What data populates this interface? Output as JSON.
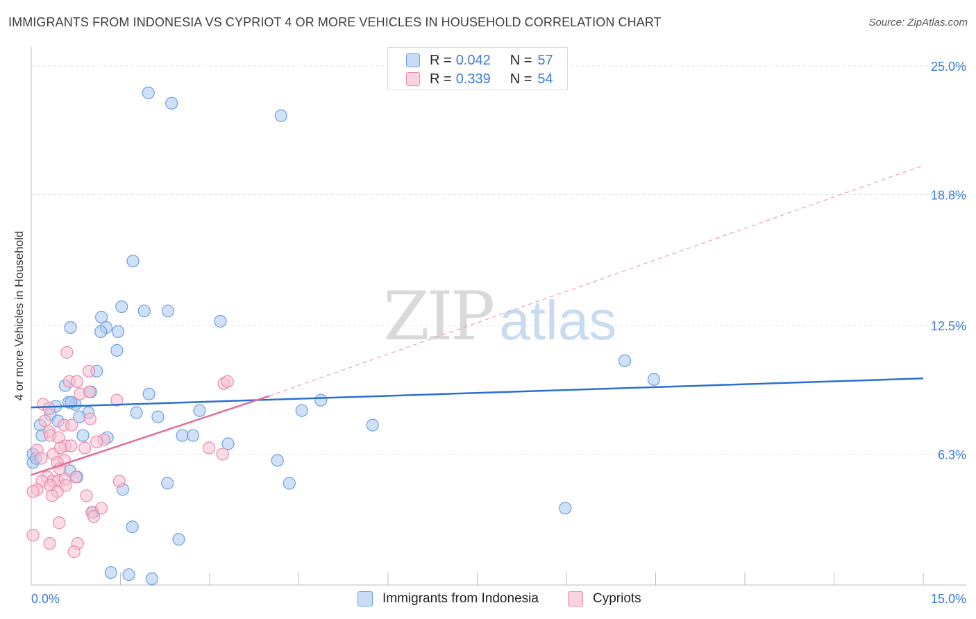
{
  "title": "IMMIGRANTS FROM INDONESIA VS CYPRIOT 4 OR MORE VEHICLES IN HOUSEHOLD CORRELATION CHART",
  "source": "Source: ZipAtlas.com",
  "watermark": {
    "zip": "ZIP",
    "atlas": "atlas"
  },
  "legend": {
    "r_label": "R =",
    "n_label": "N =",
    "rows": [
      {
        "r": "0.042",
        "n": "57",
        "color": "#aac8f0",
        "border": "#6a9fe0"
      },
      {
        "r": "0.339",
        "n": "54",
        "color": "#f8c0d2",
        "border": "#e88aaa"
      }
    ]
  },
  "bottom_legend": [
    {
      "label": "Immigrants from Indonesia",
      "color": "#aac8f0",
      "border": "#6a9fe0"
    },
    {
      "label": "Cypriots",
      "color": "#f8c0d2",
      "border": "#e88aaa"
    }
  ],
  "chart_data": {
    "type": "scatter",
    "title": "IMMIGRANTS FROM INDONESIA VS CYPRIOT 4 OR MORE VEHICLES IN HOUSEHOLD CORRELATION CHART",
    "xlabel": "",
    "ylabel": "4 or more Vehicles in Household",
    "xlim": [
      0,
      15
    ],
    "ylim": [
      0,
      25.6
    ],
    "x_tick_labels": [
      "0.0%",
      "15.0%"
    ],
    "y_ticks": [
      6.3,
      12.5,
      18.8,
      25.0
    ],
    "y_tick_labels": [
      "6.3%",
      "12.5%",
      "18.8%",
      "25.0%"
    ],
    "grid": true,
    "series": [
      {
        "name": "Immigrants from Indonesia",
        "color": "#6a9fe0",
        "fill": "#aac8f0",
        "points": [
          [
            1.97,
            23.7
          ],
          [
            2.36,
            23.2
          ],
          [
            4.2,
            22.6
          ],
          [
            1.71,
            15.6
          ],
          [
            1.52,
            13.4
          ],
          [
            1.9,
            13.2
          ],
          [
            2.3,
            13.2
          ],
          [
            1.18,
            12.9
          ],
          [
            3.18,
            12.7
          ],
          [
            0.66,
            12.4
          ],
          [
            1.26,
            12.4
          ],
          [
            1.17,
            12.2
          ],
          [
            1.46,
            12.2
          ],
          [
            1.44,
            11.3
          ],
          [
            1.1,
            10.3
          ],
          [
            9.98,
            10.8
          ],
          [
            10.47,
            9.9
          ],
          [
            0.57,
            9.6
          ],
          [
            1.98,
            9.2
          ],
          [
            1.0,
            9.3
          ],
          [
            0.74,
            8.7
          ],
          [
            0.63,
            8.8
          ],
          [
            0.41,
            8.6
          ],
          [
            0.67,
            8.8
          ],
          [
            4.87,
            8.9
          ],
          [
            1.77,
            8.3
          ],
          [
            2.83,
            8.4
          ],
          [
            4.55,
            8.4
          ],
          [
            0.96,
            8.3
          ],
          [
            0.81,
            8.1
          ],
          [
            2.13,
            8.1
          ],
          [
            0.32,
            8.2
          ],
          [
            0.45,
            7.9
          ],
          [
            0.15,
            7.7
          ],
          [
            5.74,
            7.7
          ],
          [
            0.18,
            7.2
          ],
          [
            2.54,
            7.2
          ],
          [
            2.72,
            7.2
          ],
          [
            0.87,
            7.2
          ],
          [
            1.28,
            7.1
          ],
          [
            3.31,
            6.8
          ],
          [
            0.03,
            6.3
          ],
          [
            0.03,
            5.9
          ],
          [
            0.08,
            6.1
          ],
          [
            4.14,
            6.0
          ],
          [
            0.65,
            5.5
          ],
          [
            0.77,
            5.2
          ],
          [
            2.29,
            4.9
          ],
          [
            4.34,
            4.9
          ],
          [
            1.54,
            4.6
          ],
          [
            8.98,
            3.7
          ],
          [
            1.04,
            3.5
          ],
          [
            1.7,
            2.8
          ],
          [
            2.48,
            2.2
          ],
          [
            1.34,
            0.6
          ],
          [
            1.64,
            0.5
          ],
          [
            2.03,
            0.3
          ]
        ]
      },
      {
        "name": "Cypriots",
        "color": "#e88aaa",
        "fill": "#f8c0d2",
        "points": [
          [
            0.6,
            11.2
          ],
          [
            0.97,
            10.3
          ],
          [
            0.64,
            9.8
          ],
          [
            0.77,
            9.8
          ],
          [
            3.24,
            9.7
          ],
          [
            3.3,
            9.8
          ],
          [
            0.82,
            9.2
          ],
          [
            0.98,
            9.3
          ],
          [
            1.44,
            8.9
          ],
          [
            0.2,
            8.7
          ],
          [
            0.3,
            8.5
          ],
          [
            0.23,
            7.9
          ],
          [
            0.55,
            7.7
          ],
          [
            0.3,
            7.4
          ],
          [
            0.99,
            8.0
          ],
          [
            0.68,
            7.7
          ],
          [
            0.32,
            7.2
          ],
          [
            0.46,
            7.1
          ],
          [
            1.22,
            7.0
          ],
          [
            1.1,
            6.9
          ],
          [
            0.57,
            6.7
          ],
          [
            0.67,
            6.7
          ],
          [
            0.1,
            6.5
          ],
          [
            0.37,
            6.3
          ],
          [
            0.49,
            6.6
          ],
          [
            0.56,
            6.0
          ],
          [
            0.9,
            6.6
          ],
          [
            2.99,
            6.6
          ],
          [
            3.22,
            6.3
          ],
          [
            0.17,
            6.1
          ],
          [
            0.44,
            5.9
          ],
          [
            0.48,
            5.6
          ],
          [
            0.27,
            5.2
          ],
          [
            0.36,
            5.0
          ],
          [
            0.45,
            5.0
          ],
          [
            0.57,
            5.1
          ],
          [
            0.75,
            5.2
          ],
          [
            0.18,
            5.0
          ],
          [
            0.32,
            4.8
          ],
          [
            0.1,
            4.6
          ],
          [
            0.44,
            4.5
          ],
          [
            0.58,
            4.8
          ],
          [
            0.35,
            4.3
          ],
          [
            1.48,
            5.0
          ],
          [
            0.93,
            4.3
          ],
          [
            0.03,
            4.5
          ],
          [
            1.02,
            3.5
          ],
          [
            1.05,
            3.3
          ],
          [
            0.47,
            3.0
          ],
          [
            1.18,
            3.7
          ],
          [
            0.03,
            2.4
          ],
          [
            0.31,
            2.0
          ],
          [
            0.78,
            2.0
          ],
          [
            0.72,
            1.6
          ]
        ]
      }
    ],
    "trend_lines": [
      {
        "series": "Immigrants from Indonesia",
        "x": [
          0,
          15
        ],
        "y": [
          8.55,
          9.95
        ],
        "style": "solid",
        "color": "#2a6fd0"
      },
      {
        "series": "Cypriots",
        "x": [
          0,
          4.0
        ],
        "y": [
          5.3,
          9.1
        ],
        "style": "solid",
        "color": "#e06c98"
      },
      {
        "series": "Cypriots",
        "x": [
          4.0,
          15
        ],
        "y": [
          9.1,
          20.2
        ],
        "style": "dashed",
        "color": "#e8a0b8"
      }
    ]
  }
}
